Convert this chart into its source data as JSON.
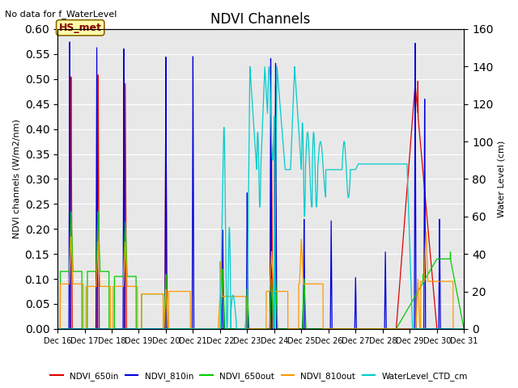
{
  "title": "NDVI Channels",
  "subtitle": "No data for f_WaterLevel",
  "ylabel_left": "NDVI channels (W/m2/nm)",
  "ylabel_right": "Water Level (cm)",
  "annotation": "HS_met",
  "ylim_left": [
    0.0,
    0.6
  ],
  "ylim_right": [
    0,
    160
  ],
  "yticks_left": [
    0.0,
    0.05,
    0.1,
    0.15,
    0.2,
    0.25,
    0.3,
    0.35,
    0.4,
    0.45,
    0.5,
    0.55,
    0.6
  ],
  "yticks_right": [
    0,
    20,
    40,
    60,
    80,
    100,
    120,
    140,
    160
  ],
  "colors": {
    "NDVI_650in": "#dd0000",
    "NDVI_810in": "#0000dd",
    "NDVI_650out": "#00cc00",
    "NDVI_810out": "#ff9900",
    "WaterLevel_CTD_cm": "#00cccc"
  },
  "legend_labels": [
    "NDVI_650in",
    "NDVI_810in",
    "NDVI_650out",
    "NDVI_810out",
    "WaterLevel_CTD_cm"
  ],
  "xtick_labels": [
    "Dec 16",
    "Dec 17",
    "Dec 18",
    "Dec 19",
    "Dec 20",
    "Dec 21",
    "Dec 22",
    "Dec 23",
    "Dec 24",
    "Dec 25",
    "Dec 26",
    "Dec 27",
    "Dec 28",
    "Dec 29",
    "Dec 30",
    "Dec 31"
  ],
  "background_color": "#e8e8e8",
  "fig_width": 6.4,
  "fig_height": 4.8,
  "dpi": 100
}
